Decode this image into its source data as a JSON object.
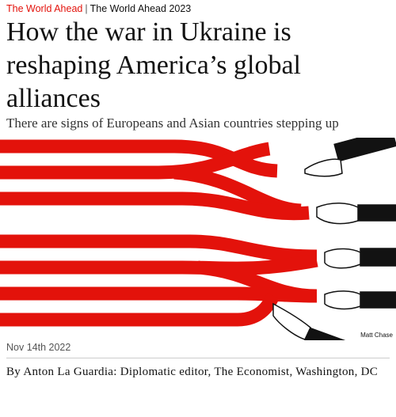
{
  "header": {
    "section": "The World Ahead",
    "separator": "|",
    "series": "The World Ahead 2023",
    "title": "How the war in Ukraine is reshaping America’s global alliances",
    "subtitle": "There are signs of Europeans and Asian countries stepping up"
  },
  "image": {
    "credit": "Matt Chase"
  },
  "meta": {
    "date": "Nov 14th 2022",
    "byline": "By Anton La Guardia: Diplomatic editor, The Economist, Washington, DC"
  }
}
